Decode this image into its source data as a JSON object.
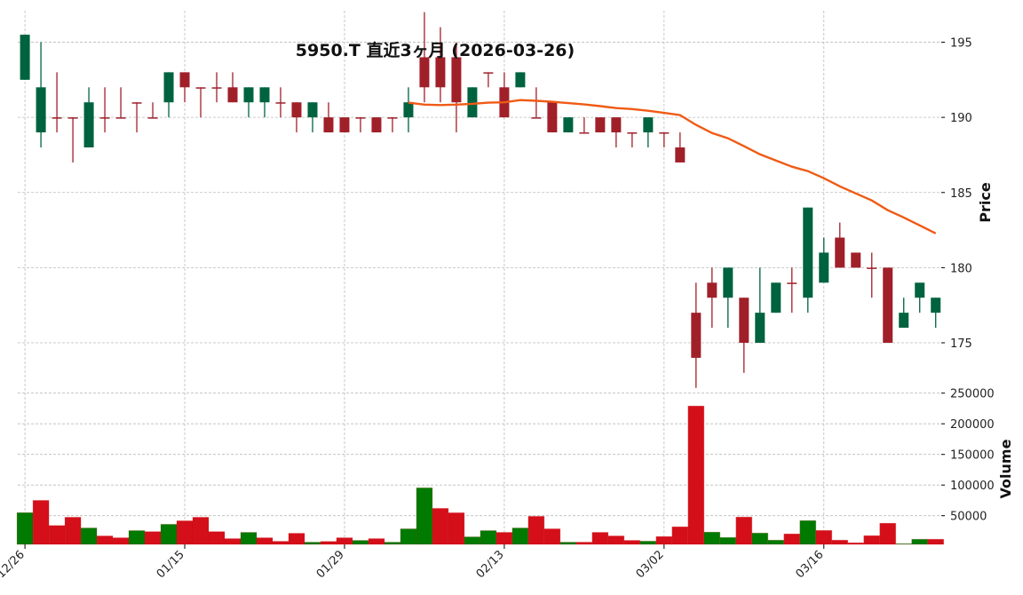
{
  "chart_data": {
    "type": "candlestick",
    "title": "5950.T  直近3ヶ月  (2026-03-26)",
    "ylabel_price": "Price",
    "ylabel_volume": "Volume",
    "xlim": [
      -0.45,
      57.35
    ],
    "price_ylim": [
      172.4,
      197.1
    ],
    "volume_ylim": [
      3200,
      265500
    ],
    "price_ticks": [
      175,
      180,
      185,
      190,
      195
    ],
    "volume_ticks": [
      50000,
      100000,
      150000,
      200000,
      250000
    ],
    "xticks": [
      {
        "index": 0,
        "label": "12/26"
      },
      {
        "index": 10,
        "label": "01/15"
      },
      {
        "index": 20,
        "label": "01/29"
      },
      {
        "index": 30,
        "label": "02/13"
      },
      {
        "index": 40,
        "label": "03/02"
      },
      {
        "index": 50,
        "label": "03/16"
      }
    ],
    "grid": true,
    "colors": {
      "up_candle": "#006340",
      "down_candle": "#a0202a",
      "up_volume": "#007a00",
      "down_volume": "#d40f1a",
      "moving_average": "#f05a14",
      "grid": "#bbbbbb"
    },
    "ohlc": [
      [
        192.5,
        195.5,
        192.5,
        195.5
      ],
      [
        189,
        195,
        188,
        192
      ],
      [
        190,
        193,
        189,
        190
      ],
      [
        190,
        190,
        187,
        190
      ],
      [
        188,
        192,
        188,
        191
      ],
      [
        190,
        192,
        189,
        190
      ],
      [
        190,
        192,
        190,
        190
      ],
      [
        191,
        191,
        189,
        191
      ],
      [
        190,
        191,
        190,
        190
      ],
      [
        191,
        193,
        190,
        193
      ],
      [
        193,
        193,
        191,
        192
      ],
      [
        192,
        192,
        190,
        192
      ],
      [
        192,
        193,
        191,
        192
      ],
      [
        192,
        193,
        191,
        191
      ],
      [
        191,
        192,
        190,
        192
      ],
      [
        191,
        192,
        190,
        192
      ],
      [
        191,
        192,
        190,
        191
      ],
      [
        191,
        191,
        189,
        190
      ],
      [
        190,
        191,
        189,
        191
      ],
      [
        190,
        191,
        189,
        189
      ],
      [
        190,
        190,
        189,
        189
      ],
      [
        190,
        190,
        189,
        190
      ],
      [
        190,
        190,
        189,
        189
      ],
      [
        190,
        190,
        189,
        190
      ],
      [
        190,
        192,
        189,
        191
      ],
      [
        194,
        197,
        191,
        192
      ],
      [
        194,
        196,
        191,
        192
      ],
      [
        194,
        195,
        189,
        191
      ],
      [
        190,
        192,
        190,
        192
      ],
      [
        193,
        193,
        192,
        193
      ],
      [
        192,
        193,
        190,
        190
      ],
      [
        192,
        193,
        192,
        193
      ],
      [
        190,
        192,
        190,
        190
      ],
      [
        191,
        191,
        189,
        189
      ],
      [
        189,
        190,
        189,
        190
      ],
      [
        189,
        190,
        189,
        189
      ],
      [
        190,
        190,
        189,
        189
      ],
      [
        190,
        190,
        188,
        189
      ],
      [
        189,
        189,
        188,
        189
      ],
      [
        189,
        190,
        188,
        190
      ],
      [
        189,
        189,
        188,
        189
      ],
      [
        188,
        189,
        187,
        187
      ],
      [
        177,
        179,
        172,
        174
      ],
      [
        179,
        180,
        176,
        178
      ],
      [
        178,
        180,
        176,
        180
      ],
      [
        178,
        178,
        173,
        175
      ],
      [
        175,
        180,
        175,
        177
      ],
      [
        177,
        179,
        177,
        179
      ],
      [
        179,
        180,
        177,
        179
      ],
      [
        178,
        184,
        177,
        184
      ],
      [
        179,
        182,
        179,
        181
      ],
      [
        182,
        183,
        180,
        180
      ],
      [
        181,
        181,
        180,
        180
      ],
      [
        180,
        181,
        178,
        180
      ],
      [
        180,
        180,
        175,
        175
      ],
      [
        176,
        178,
        176,
        177
      ],
      [
        178,
        179,
        177,
        179
      ],
      [
        177,
        178,
        176,
        178
      ]
    ],
    "volume": [
      55000,
      75000,
      34000,
      47500,
      30000,
      17000,
      14000,
      25700,
      24000,
      36000,
      41700,
      47500,
      24000,
      12600,
      22800,
      14000,
      8200,
      21300,
      6800,
      8000,
      14000,
      9700,
      12600,
      6800,
      28600,
      95500,
      62000,
      54800,
      15500,
      25700,
      22800,
      30000,
      49000,
      28600,
      6800,
      6800,
      22800,
      17000,
      9700,
      8500,
      16000,
      31900,
      229000,
      23200,
      14500,
      47800,
      21700,
      10100,
      20300,
      42000,
      26000,
      10100,
      5800,
      17400,
      37700,
      4300,
      11600,
      11600
    ],
    "volume_up": [
      true,
      false,
      false,
      false,
      true,
      false,
      false,
      true,
      false,
      true,
      false,
      false,
      false,
      false,
      true,
      false,
      false,
      false,
      true,
      false,
      false,
      true,
      false,
      true,
      true,
      true,
      false,
      false,
      true,
      true,
      false,
      true,
      false,
      false,
      true,
      false,
      false,
      false,
      false,
      true,
      false,
      false,
      false,
      true,
      true,
      false,
      true,
      true,
      false,
      true,
      false,
      false,
      false,
      false,
      false,
      true,
      true,
      false
    ],
    "moving_average": {
      "start_index": 24,
      "values": [
        190.98,
        190.85,
        190.82,
        190.85,
        190.9,
        190.98,
        191.0,
        191.15,
        191.1,
        191.04,
        190.95,
        190.86,
        190.75,
        190.62,
        190.55,
        190.44,
        190.3,
        190.15,
        189.5,
        188.96,
        188.61,
        188.08,
        187.54,
        187.13,
        186.72,
        186.42,
        185.95,
        185.41,
        184.94,
        184.47,
        183.82,
        183.34,
        182.81,
        182.28
      ]
    }
  }
}
